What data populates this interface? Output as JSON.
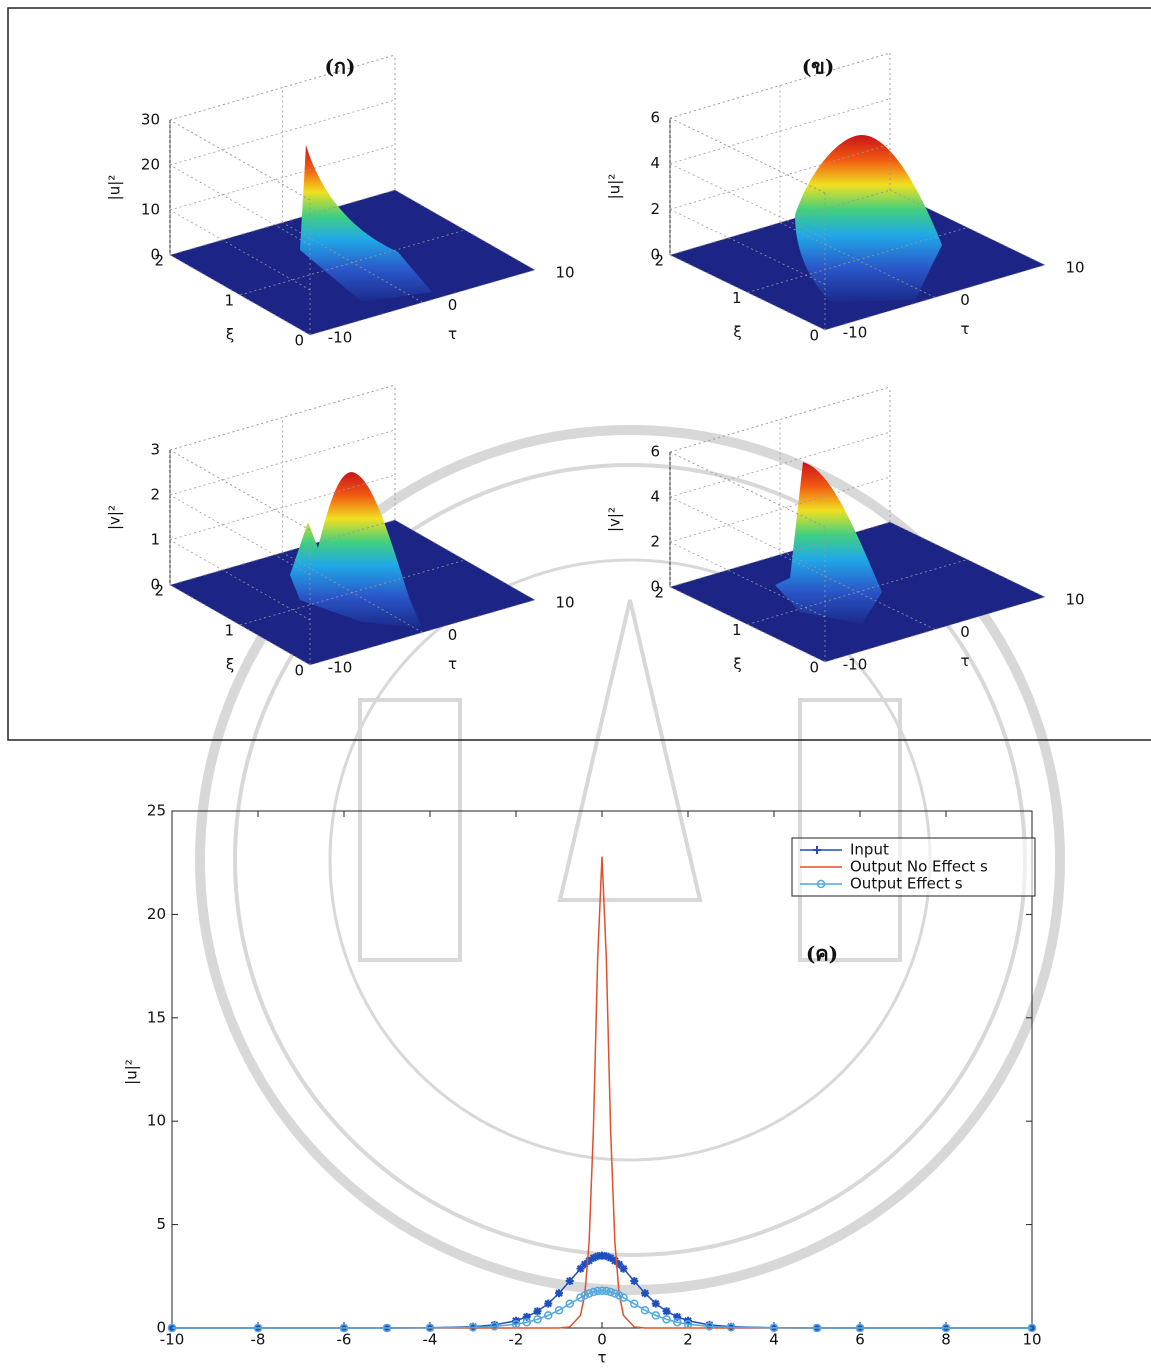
{
  "chart_data": [
    {
      "type": "surface3d",
      "title": "(ก)",
      "xlabel": "τ",
      "ylabel": "ξ",
      "zlabel": "|u|²",
      "xlim": [
        -10,
        10
      ],
      "xticks": [
        -10,
        0,
        10
      ],
      "ylim": [
        0,
        2
      ],
      "yticks": [
        0,
        1,
        2
      ],
      "zlim": [
        0,
        30
      ],
      "zticks": [
        0,
        10,
        20,
        30
      ]
    },
    {
      "type": "surface3d",
      "title": "(ข)",
      "xlabel": "τ",
      "ylabel": "ξ",
      "zlabel": "|u|²",
      "xlim": [
        -10,
        10
      ],
      "xticks": [
        -10,
        0,
        10
      ],
      "ylim": [
        0,
        2
      ],
      "yticks": [
        0,
        1,
        2
      ],
      "zlim": [
        0,
        6
      ],
      "zticks": [
        0,
        2,
        4,
        6
      ]
    },
    {
      "type": "surface3d",
      "xlabel": "τ",
      "ylabel": "ξ",
      "zlabel": "|v|²",
      "xlim": [
        -10,
        10
      ],
      "xticks": [
        -10,
        0,
        10
      ],
      "ylim": [
        0,
        2
      ],
      "yticks": [
        0,
        1,
        2
      ],
      "zlim": [
        0,
        3
      ],
      "zticks": [
        0,
        1,
        2,
        3
      ]
    },
    {
      "type": "surface3d",
      "xlabel": "τ",
      "ylabel": "ξ",
      "zlabel": "|v|²",
      "xlim": [
        -10,
        10
      ],
      "xticks": [
        -10,
        0,
        10
      ],
      "ylim": [
        0,
        2
      ],
      "yticks": [
        0,
        1,
        2
      ],
      "zlim": [
        0,
        6
      ],
      "zticks": [
        0,
        2,
        4,
        6
      ]
    },
    {
      "type": "line",
      "annotation": "(ค)",
      "xlabel": "τ",
      "ylabel": "|u|²",
      "xlim": [
        -10,
        10
      ],
      "xticks": [
        -10,
        -8,
        -6,
        -4,
        -2,
        0,
        2,
        4,
        6,
        8,
        10
      ],
      "ylim": [
        0,
        25
      ],
      "yticks": [
        0,
        5,
        10,
        15,
        20,
        25
      ],
      "legend": "upper right",
      "x": [
        -10,
        -8,
        -6,
        -5,
        -4,
        -3,
        -2.5,
        -2,
        -1.75,
        -1.5,
        -1.25,
        -1,
        -0.75,
        -0.5,
        -0.4,
        -0.3,
        -0.2,
        -0.1,
        0,
        0.1,
        0.2,
        0.3,
        0.4,
        0.5,
        0.75,
        1,
        1.25,
        1.5,
        1.75,
        2,
        2.5,
        3,
        4,
        5,
        6,
        8,
        10
      ],
      "series": [
        {
          "name": "Input",
          "color": "#1f4fbf",
          "marker": "star",
          "values": [
            0,
            0,
            0,
            0,
            0.01,
            0.06,
            0.15,
            0.35,
            0.54,
            0.81,
            1.18,
            1.68,
            2.27,
            2.87,
            3.08,
            3.25,
            3.39,
            3.47,
            3.5,
            3.47,
            3.39,
            3.25,
            3.08,
            2.87,
            2.27,
            1.68,
            1.18,
            0.81,
            0.54,
            0.35,
            0.15,
            0.06,
            0.01,
            0,
            0,
            0,
            0
          ]
        },
        {
          "name": "Output No Effect s",
          "color": "#e0502a",
          "marker": "none",
          "values": [
            0,
            0,
            0,
            0,
            0,
            0,
            0,
            0,
            0,
            0,
            0,
            0,
            0.05,
            0.61,
            1.61,
            4.13,
            9.58,
            17.93,
            22.8,
            17.93,
            9.58,
            4.13,
            1.61,
            0.61,
            0.05,
            0,
            0,
            0,
            0,
            0,
            0,
            0,
            0,
            0,
            0,
            0,
            0
          ]
        },
        {
          "name": "Output Effect s",
          "color": "#4fa8e0",
          "marker": "circle",
          "values": [
            0,
            0,
            0,
            0,
            0.01,
            0.03,
            0.08,
            0.18,
            0.28,
            0.42,
            0.61,
            0.86,
            1.17,
            1.47,
            1.58,
            1.67,
            1.74,
            1.79,
            1.8,
            1.79,
            1.74,
            1.67,
            1.58,
            1.47,
            1.17,
            0.86,
            0.61,
            0.42,
            0.28,
            0.18,
            0.08,
            0.03,
            0.01,
            0,
            0,
            0,
            0
          ]
        }
      ]
    }
  ]
}
